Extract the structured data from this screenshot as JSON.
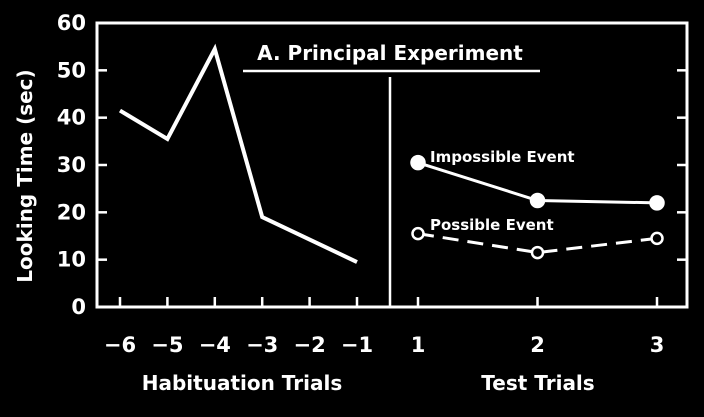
{
  "chart_data": {
    "type": "line",
    "title": "A. Principal Experiment",
    "ylabel": "Looking Time (sec)",
    "ylim": [
      0,
      60
    ],
    "yticks": [
      0,
      10,
      20,
      30,
      40,
      50,
      60
    ],
    "grid": false,
    "panels": [
      {
        "xlabel": "Habituation Trials",
        "categories": [
          "-6",
          "-5",
          "-4",
          "-3",
          "-2",
          "-1"
        ],
        "tick_labels": [
          "−6",
          "−5",
          "−4",
          "−3",
          "−2",
          "−1"
        ],
        "series": [
          {
            "x": [
              "-6",
              "-5",
              "-4",
              "-3",
              "-1"
            ],
            "values": [
              41.5,
              35.5,
              54.5,
              19.0,
              9.5
            ]
          }
        ]
      },
      {
        "xlabel": "Test Trials",
        "categories": [
          "1",
          "2",
          "3"
        ],
        "tick_labels": [
          "1",
          "2",
          "3"
        ],
        "series": [
          {
            "name": "Impossible Event",
            "x": [
              "1",
              "2",
              "3"
            ],
            "values": [
              30.5,
              22.5,
              22.0
            ],
            "style": "solid",
            "marker": "filled"
          },
          {
            "name": "Possible Event",
            "x": [
              "1",
              "2",
              "3"
            ],
            "values": [
              15.5,
              11.5,
              14.5
            ],
            "style": "dashed",
            "marker": "open"
          }
        ]
      }
    ],
    "colors": {
      "background": "#000000",
      "foreground": "#ffffff"
    }
  }
}
